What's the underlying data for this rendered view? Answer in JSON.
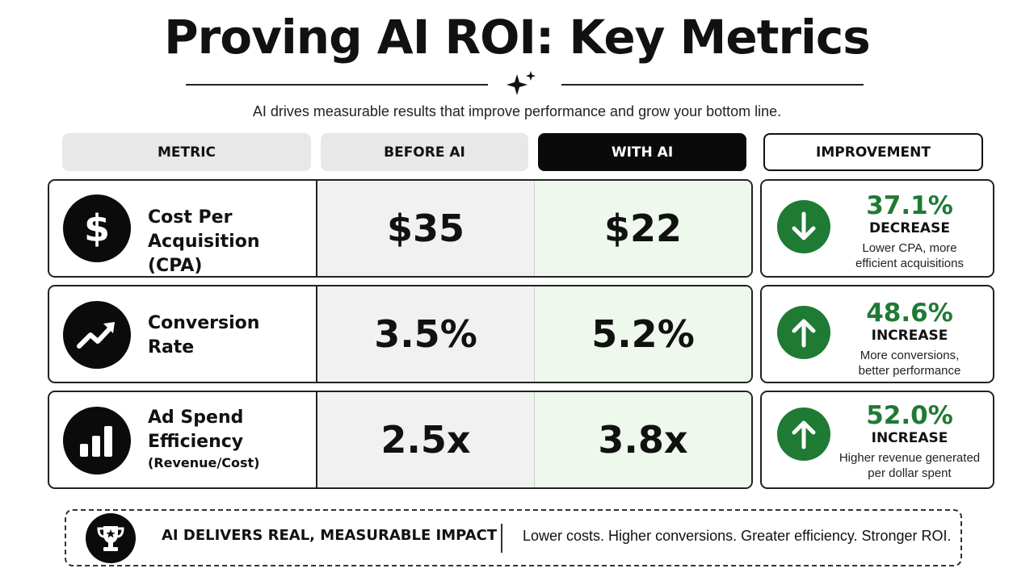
{
  "header": {
    "title": "Proving AI ROI: Key Metrics",
    "subtitle": "AI drives measurable results that improve performance and grow your bottom line."
  },
  "columns": {
    "metric": "METRIC",
    "before": "BEFORE AI",
    "with": "WITH AI",
    "improvement": "IMPROVEMENT"
  },
  "rows": [
    {
      "icon": "dollar-icon",
      "name_line1": "Cost Per",
      "name_line2": "Acquisition (CPA)",
      "before": "$35",
      "with": "$22",
      "improvement": {
        "icon": "arrow-down-icon",
        "percent": "37.1%",
        "direction": "DECREASE",
        "desc_line1": "Lower CPA, more",
        "desc_line2": "efficient acquisitions"
      }
    },
    {
      "icon": "trend-up-icon",
      "name_line1": "Conversion",
      "name_line2": "Rate",
      "before": "3.5%",
      "with": "5.2%",
      "improvement": {
        "icon": "arrow-up-icon",
        "percent": "48.6%",
        "direction": "INCREASE",
        "desc_line1": "More conversions,",
        "desc_line2": "better performance"
      }
    },
    {
      "icon": "bar-chart-icon",
      "name_line1": "Ad Spend",
      "name_line2": "Efficiency",
      "name_sub": "(Revenue/Cost)",
      "before": "2.5x",
      "with": "3.8x",
      "improvement": {
        "icon": "arrow-up-icon",
        "percent": "52.0%",
        "direction": "INCREASE",
        "desc_line1": "Higher revenue generated",
        "desc_line2": "per dollar spent"
      }
    }
  ],
  "footer": {
    "icon": "trophy-icon",
    "headline": "AI DELIVERS REAL, MEASURABLE IMPACT",
    "tagline": "Lower costs. Higher conversions. Greater efficiency. Stronger ROI."
  },
  "colors": {
    "accent_green": "#1f7a34",
    "with_ai_bg": "#eef8ec",
    "before_ai_bg": "#f1f1f1",
    "dark": "#0b0b0b"
  }
}
